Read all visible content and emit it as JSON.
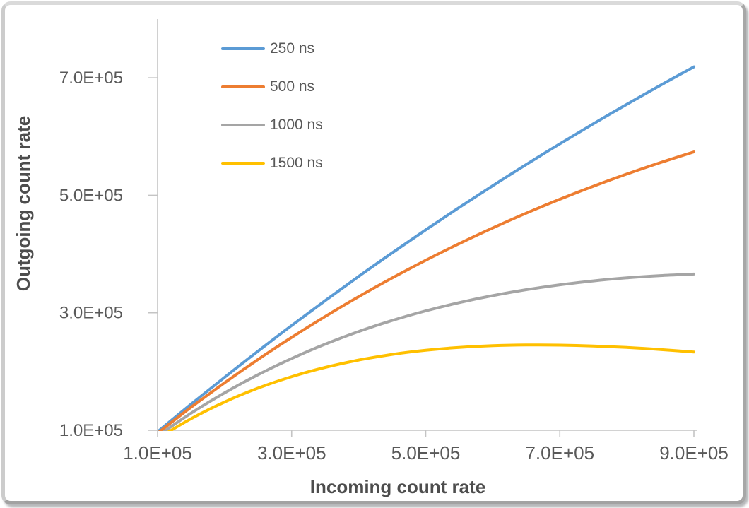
{
  "figure": {
    "background": "#ffffff",
    "frame_border_color": "#b0b0b0"
  },
  "chart_data": {
    "type": "line",
    "title": "",
    "xlabel": "Incoming count rate",
    "ylabel": "Outgoing count rate",
    "xlim": [
      100000,
      900000
    ],
    "ylim": [
      100000,
      800000
    ],
    "grid": false,
    "legend_position": "inside-top-left",
    "axis_color": "#C4C4C4",
    "tick_label_color": "#595959",
    "axis_title_color": "#4d4d4d",
    "x_tick_labels": [
      "1.0E+05",
      "3.0E+05",
      "5.0E+05",
      "7.0E+05",
      "9.0E+05"
    ],
    "y_tick_labels": [
      "1.0E+05",
      "3.0E+05",
      "5.0E+05",
      "7.0E+05"
    ],
    "x": [
      100000,
      150000,
      200000,
      250000,
      300000,
      350000,
      400000,
      450000,
      500000,
      550000,
      600000,
      650000,
      700000,
      750000,
      800000,
      850000,
      900000
    ],
    "series": [
      {
        "name": "250 ns",
        "color": "#5B9BD5",
        "values": [
          97531,
          144479,
          190246,
          234853,
          278323,
          320677,
          361936,
          402121,
          441248,
          479339,
          516426,
          552520,
          587622,
          621773,
          654985,
          687276,
          718665
        ]
      },
      {
        "name": "500 ns",
        "color": "#ED7D31",
        "values": [
          95123,
          139161,
          180967,
          220624,
          258212,
          293812,
          327492,
          359333,
          389400,
          417764,
          444492,
          469645,
          493283,
          515468,
          536256,
          555705,
          573867
        ]
      },
      {
        "name": "1000 ns",
        "color": "#A5A5A5",
        "values": [
          90484,
          129107,
          163746,
          194700,
          222245,
          246642,
          268128,
          286934,
          303265,
          317323,
          329286,
          339333,
          347613,
          354278,
          359464,
          363299,
          365913
        ]
      },
      {
        "name": "1500 ns",
        "color": "#FFC000",
        "values": [
          86071,
          119778,
          148164,
          171823,
          191289,
          207046,
          219525,
          229122,
          236183,
          241027,
          243942,
          245174,
          244958,
          243488,
          240952,
          237473,
          233316
        ]
      }
    ]
  }
}
